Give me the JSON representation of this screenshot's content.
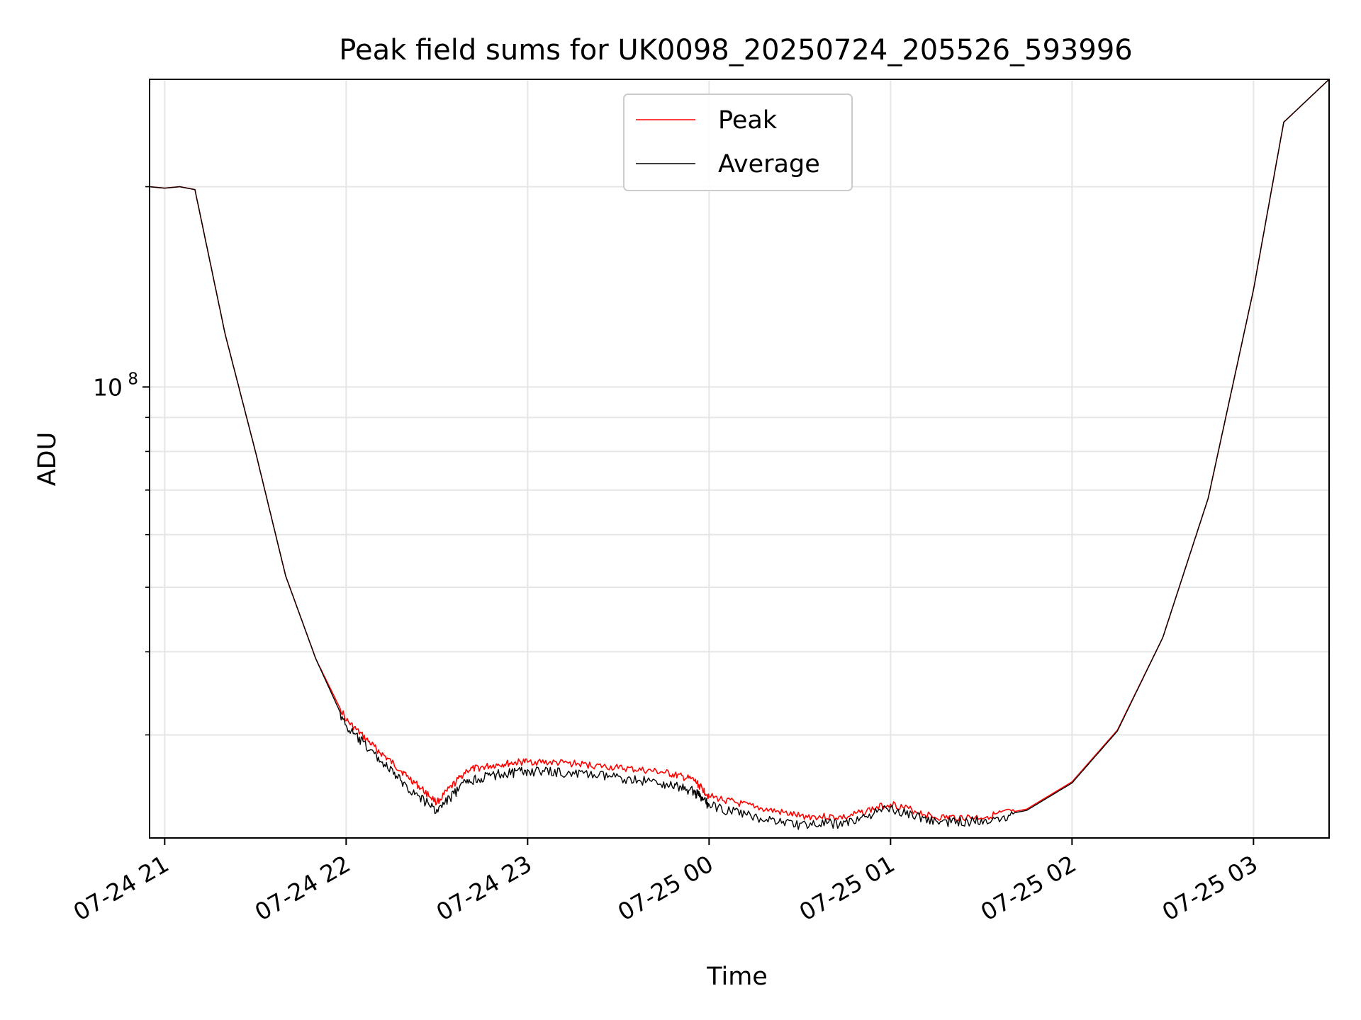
{
  "chart_data": {
    "type": "line",
    "title": "Peak field sums for UK0098_20250724_205526_593996",
    "xlabel": "Time",
    "ylabel": "ADU",
    "y_scale": "log",
    "grid": true,
    "legend_placement": "upper center",
    "x_range": [
      "2025-07-24 20:55",
      "2025-07-25 03:25"
    ],
    "y_range": [
      21000000,
      290000000
    ],
    "x_ticks": [
      "07-24 21",
      "07-24 22",
      "07-24 23",
      "07-25 00",
      "07-25 01",
      "07-25 02",
      "07-25 03"
    ],
    "x_tick_times": [
      "2025-07-24 21:00",
      "2025-07-24 22:00",
      "2025-07-24 23:00",
      "2025-07-25 00:00",
      "2025-07-25 01:00",
      "2025-07-25 02:00",
      "2025-07-25 03:00"
    ],
    "y_major_ticks": [
      {
        "value": 100000000,
        "base": "10",
        "exp": "8"
      }
    ],
    "y_minor_ticks": [
      30000000,
      40000000,
      50000000,
      60000000,
      70000000,
      80000000,
      90000000,
      200000000
    ],
    "series": [
      {
        "name": "Peak",
        "color": "#ff0000",
        "x": [
          "2025-07-24 20:55",
          "2025-07-24 21:00",
          "2025-07-24 21:05",
          "2025-07-24 21:10",
          "2025-07-24 21:20",
          "2025-07-24 21:30",
          "2025-07-24 21:40",
          "2025-07-24 21:50",
          "2025-07-24 22:00",
          "2025-07-24 22:10",
          "2025-07-24 22:20",
          "2025-07-24 22:30",
          "2025-07-24 22:40",
          "2025-07-24 22:50",
          "2025-07-24 23:00",
          "2025-07-24 23:15",
          "2025-07-24 23:30",
          "2025-07-24 23:45",
          "2025-07-24 23:55",
          "2025-07-25 00:00",
          "2025-07-25 00:15",
          "2025-07-25 00:30",
          "2025-07-25 00:45",
          "2025-07-25 01:00",
          "2025-07-25 01:15",
          "2025-07-25 01:30",
          "2025-07-25 01:45",
          "2025-07-25 02:00",
          "2025-07-25 02:15",
          "2025-07-25 02:30",
          "2025-07-25 02:45",
          "2025-07-25 03:00",
          "2025-07-25 03:10",
          "2025-07-25 03:25"
        ],
        "y": [
          200000000,
          199000000,
          200000000,
          198000000,
          120000000,
          80000000,
          52000000,
          39000000,
          31500000,
          28500000,
          26000000,
          23700000,
          26500000,
          27000000,
          27300000,
          27100000,
          26700000,
          26300000,
          25600000,
          24200000,
          23300000,
          22600000,
          22500000,
          23600000,
          22500000,
          22500000,
          23200000,
          25500000,
          30500000,
          42000000,
          68000000,
          140000000,
          250000000,
          290000000
        ]
      },
      {
        "name": "Average",
        "color": "#000000",
        "x": [
          "2025-07-24 20:55",
          "2025-07-24 21:00",
          "2025-07-24 21:05",
          "2025-07-24 21:10",
          "2025-07-24 21:20",
          "2025-07-24 21:30",
          "2025-07-24 21:40",
          "2025-07-24 21:50",
          "2025-07-24 22:00",
          "2025-07-24 22:10",
          "2025-07-24 22:20",
          "2025-07-24 22:30",
          "2025-07-24 22:40",
          "2025-07-24 22:50",
          "2025-07-24 23:00",
          "2025-07-24 23:15",
          "2025-07-24 23:30",
          "2025-07-24 23:45",
          "2025-07-24 23:55",
          "2025-07-25 00:00",
          "2025-07-25 00:15",
          "2025-07-25 00:30",
          "2025-07-25 00:45",
          "2025-07-25 01:00",
          "2025-07-25 01:15",
          "2025-07-25 01:30",
          "2025-07-25 01:45",
          "2025-07-25 02:00",
          "2025-07-25 02:15",
          "2025-07-25 02:30",
          "2025-07-25 02:45",
          "2025-07-25 03:00",
          "2025-07-25 03:10",
          "2025-07-25 03:25"
        ],
        "y": [
          200000000,
          199000000,
          200000000,
          198000000,
          120000000,
          80000000,
          52000000,
          39000000,
          31000000,
          28000000,
          25200000,
          23200000,
          25700000,
          26300000,
          26600000,
          26400000,
          26000000,
          25500000,
          24800000,
          23600000,
          22700000,
          22100000,
          22200000,
          23400000,
          22300000,
          22400000,
          23100000,
          25400000,
          30400000,
          42000000,
          68000000,
          140000000,
          250000000,
          290000000
        ]
      }
    ]
  }
}
